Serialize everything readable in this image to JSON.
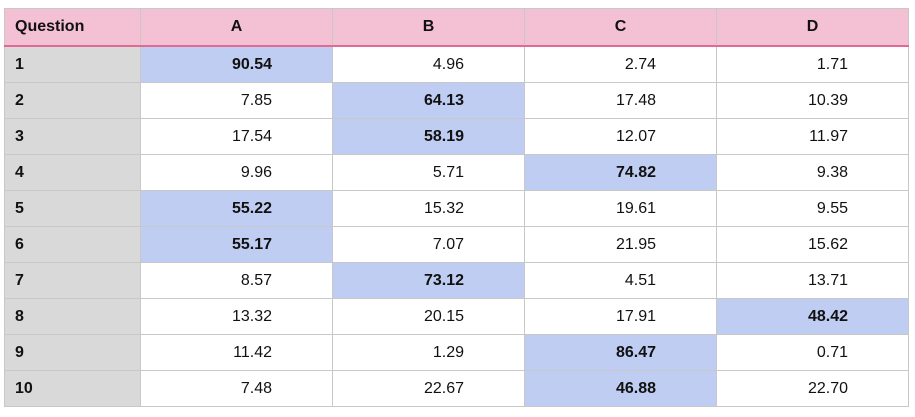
{
  "table": {
    "headers": [
      "Question",
      "A",
      "B",
      "C",
      "D"
    ],
    "rows": [
      {
        "question": "1",
        "values": [
          "90.54",
          "4.96",
          "2.74",
          "1.71"
        ],
        "max_index": 0
      },
      {
        "question": "2",
        "values": [
          "7.85",
          "64.13",
          "17.48",
          "10.39"
        ],
        "max_index": 1
      },
      {
        "question": "3",
        "values": [
          "17.54",
          "58.19",
          "12.07",
          "11.97"
        ],
        "max_index": 1
      },
      {
        "question": "4",
        "values": [
          "9.96",
          "5.71",
          "74.82",
          "9.38"
        ],
        "max_index": 2
      },
      {
        "question": "5",
        "values": [
          "55.22",
          "15.32",
          "19.61",
          "9.55"
        ],
        "max_index": 0
      },
      {
        "question": "6",
        "values": [
          "55.17",
          "7.07",
          "21.95",
          "15.62"
        ],
        "max_index": 0
      },
      {
        "question": "7",
        "values": [
          "8.57",
          "73.12",
          "4.51",
          "13.71"
        ],
        "max_index": 1
      },
      {
        "question": "8",
        "values": [
          "13.32",
          "20.15",
          "17.91",
          "48.42"
        ],
        "max_index": 3
      },
      {
        "question": "9",
        "values": [
          "11.42",
          "1.29",
          "86.47",
          "0.71"
        ],
        "max_index": 2
      },
      {
        "question": "10",
        "values": [
          "7.48",
          "22.67",
          "46.88",
          "22.70"
        ],
        "max_index": 2
      }
    ]
  },
  "colors": {
    "header_bg": "#f3c0d4",
    "header_rule": "#e06a93",
    "question_col_bg": "#d9d9d9",
    "highlight_bg": "#c0cdf2"
  }
}
